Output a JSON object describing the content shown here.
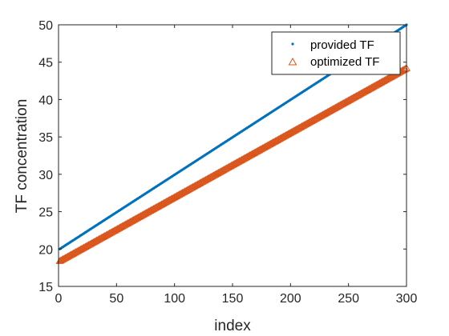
{
  "chart_data": {
    "type": "scatter",
    "title": "",
    "xlabel": "index",
    "ylabel": "TF concentration",
    "xlim": [
      0,
      300
    ],
    "ylim": [
      15,
      50
    ],
    "xticks": [
      0,
      50,
      100,
      150,
      200,
      250,
      300
    ],
    "yticks": [
      15,
      20,
      25,
      30,
      35,
      40,
      45,
      50
    ],
    "grid": false,
    "legend_position": "top-right",
    "series": [
      {
        "name": "provided TF",
        "marker": "point",
        "color": "#0072BD",
        "x_start": 1,
        "x_end": 300,
        "y_start": 20.0,
        "y_end": 50.0
      },
      {
        "name": "optimized TF",
        "marker": "triangle",
        "color": "#D95319",
        "x_start": 1,
        "x_end": 300,
        "y_start": 18.4,
        "y_end": 44.2
      }
    ]
  }
}
